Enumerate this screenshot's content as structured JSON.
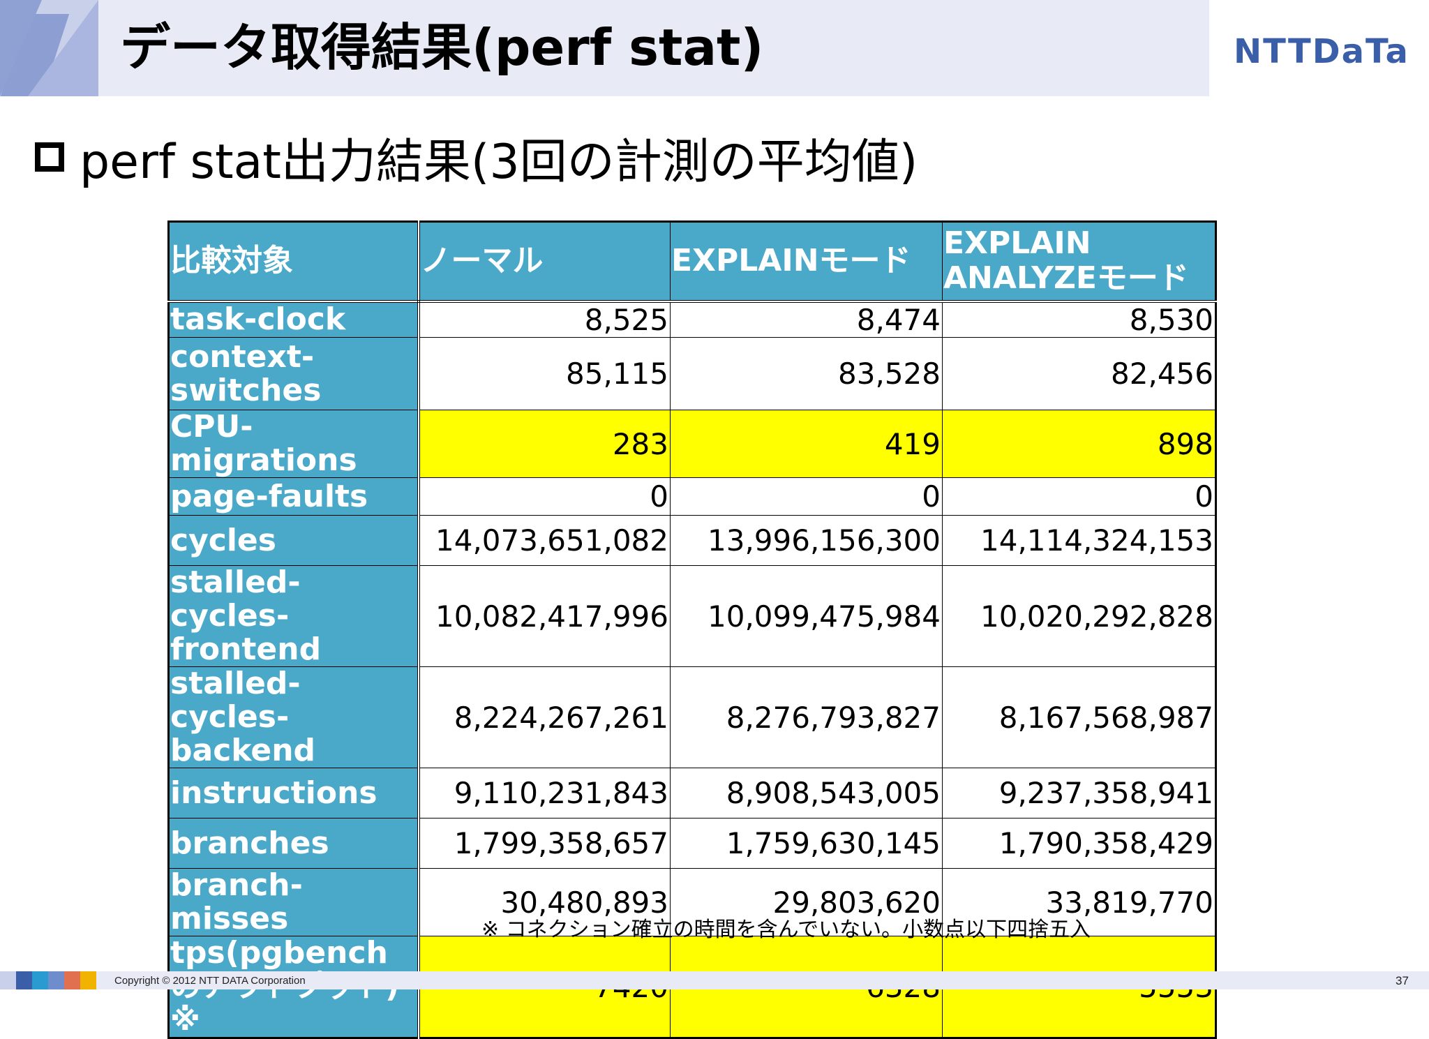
{
  "header": {
    "title": "データ取得結果(perf stat)",
    "logo": "NTTDaTa"
  },
  "subtitle": "perf stat出力結果(3回の計測の平均値)",
  "table": {
    "headers": [
      "比較対象",
      "ノーマル",
      "EXPLAINモード",
      "EXPLAIN ANALYZEモード"
    ],
    "rows": [
      {
        "label": "task-clock",
        "values": [
          "8,525",
          "8,474",
          "8,530"
        ],
        "highlight": false
      },
      {
        "label": "context-switches",
        "values": [
          "85,115",
          "83,528",
          "82,456"
        ],
        "highlight": false
      },
      {
        "label": "CPU-migrations",
        "values": [
          "283",
          "419",
          "898"
        ],
        "highlight": true
      },
      {
        "label": "page-faults",
        "values": [
          "0",
          "0",
          "0"
        ],
        "highlight": false
      },
      {
        "label": "cycles",
        "values": [
          "14,073,651,082",
          "13,996,156,300",
          "14,114,324,153"
        ],
        "highlight": false
      },
      {
        "label": "stalled-cycles-frontend",
        "values": [
          "10,082,417,996",
          "10,099,475,984",
          "10,020,292,828"
        ],
        "highlight": false
      },
      {
        "label": "stalled-cycles-backend",
        "values": [
          "8,224,267,261",
          "8,276,793,827",
          "8,167,568,987"
        ],
        "highlight": false
      },
      {
        "label": "instructions",
        "values": [
          "9,110,231,843",
          "8,908,543,005",
          "9,237,358,941"
        ],
        "highlight": false
      },
      {
        "label": "branches",
        "values": [
          "1,799,358,657",
          "1,759,630,145",
          "1,790,358,429"
        ],
        "highlight": false
      },
      {
        "label": "branch-misses",
        "values": [
          "30,480,893",
          "29,803,620",
          "33,819,770"
        ],
        "highlight": false
      },
      {
        "label": "tps(pgbenchのアウトプット) ※",
        "values": [
          "7420",
          "6328",
          "5553"
        ],
        "highlight": true
      }
    ]
  },
  "note": "※ コネクション確立の時間を含んでいない。小数点以下四捨五入",
  "footer": {
    "copyright": "Copyright © 2012 NTT DATA Corporation",
    "page": "37"
  },
  "colors": {
    "header_cell": "#4aa8c8",
    "highlight": "#ffff00",
    "brand": "#3a5fa8"
  }
}
